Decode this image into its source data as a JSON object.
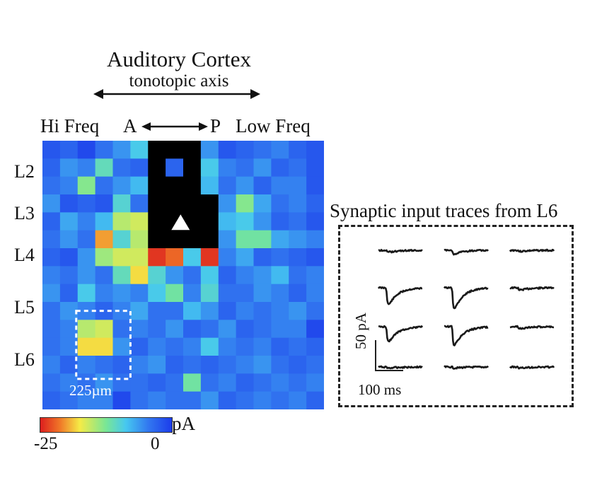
{
  "figure": {
    "title": "Auditory Cortex",
    "subtitle": "tonotopic axis",
    "hi_freq_label": "Hi Freq",
    "a_label": "A",
    "p_label": "P",
    "low_freq_label": "Low Freq",
    "layers": [
      "L2",
      "L3",
      "L4",
      "L5",
      "L6"
    ],
    "scale_label": "225µm",
    "colorbar": {
      "min_label": "-25",
      "max_label": "0",
      "unit": "pA",
      "min": -25,
      "max": 0
    },
    "traces_title": "Synaptic input traces from L6",
    "scale_y_label": "50 pA",
    "scale_x_label": "100 ms",
    "soma_marker": "triangle",
    "colors": {
      "accent_black": "#000000",
      "background_blue": "#1f45e8",
      "dash": "#ffffff"
    }
  },
  "chart_data": {
    "type": "heatmap",
    "unit": "pA",
    "range": [
      -25,
      0
    ],
    "masked_value": "excluded (black)",
    "grid": [
      [
        -2,
        -3,
        -1,
        -4,
        -6,
        -9,
        null,
        null,
        null,
        -6,
        -2,
        -3,
        -4,
        -5,
        -3,
        -2
      ],
      [
        -3,
        -6,
        -5,
        -11,
        -4,
        -3,
        null,
        -3,
        null,
        -9,
        -5,
        -4,
        -6,
        -3,
        -4,
        -2
      ],
      [
        -4,
        -5,
        -13,
        -4,
        -6,
        -8,
        null,
        null,
        null,
        -8,
        -4,
        -6,
        -3,
        -5,
        -5,
        -2
      ],
      [
        -6,
        -2,
        -3,
        -2,
        -10,
        -4,
        null,
        null,
        null,
        null,
        -6,
        -13,
        -7,
        -4,
        -5,
        -3
      ],
      [
        -3,
        -7,
        -5,
        -8,
        -15,
        -16,
        null,
        null,
        null,
        null,
        -8,
        -9,
        -6,
        -3,
        -4,
        -2
      ],
      [
        -4,
        -6,
        -4,
        -20,
        -10,
        -15,
        null,
        null,
        null,
        null,
        -6,
        -12,
        -12,
        -7,
        -6,
        -5
      ],
      [
        -3,
        -2,
        -6,
        -14,
        -16,
        -16,
        -24,
        -22,
        -9,
        -24,
        -5,
        -7,
        -3,
        -4,
        -3,
        -2
      ],
      [
        -5,
        -4,
        -6,
        -4,
        -11,
        -18,
        -10,
        -6,
        -4,
        -9,
        -3,
        -5,
        -6,
        -8,
        -4,
        -5
      ],
      [
        -6,
        -3,
        -9,
        -5,
        -6,
        -5,
        -9,
        -12,
        -5,
        -10,
        -4,
        -4,
        -6,
        -5,
        -3,
        -5
      ],
      [
        -4,
        -6,
        -5,
        -3,
        -5,
        -7,
        -4,
        -4,
        -8,
        -6,
        -3,
        -5,
        -4,
        -5,
        -6,
        -4
      ],
      [
        -4,
        -5,
        -15,
        -16,
        -4,
        -5,
        -4,
        -6,
        -3,
        -4,
        -6,
        -3,
        -4,
        -5,
        -5,
        -1
      ],
      [
        -4,
        -5,
        -18,
        -18,
        -6,
        -3,
        -5,
        -4,
        -5,
        -9,
        -5,
        -4,
        -5,
        -3,
        -4,
        -3
      ],
      [
        -5,
        -3,
        -5,
        -4,
        -3,
        -5,
        -6,
        -3,
        -4,
        -3,
        -4,
        -5,
        -6,
        -4,
        -3,
        -4
      ],
      [
        -4,
        -5,
        -4,
        -6,
        -4,
        -4,
        -3,
        -4,
        -12,
        -4,
        -5,
        -3,
        -4,
        -5,
        -4,
        -5
      ],
      [
        -3,
        -4,
        -5,
        -5,
        -1,
        -4,
        -5,
        -4,
        -4,
        -6,
        -3,
        -4,
        -5,
        -4,
        -5,
        -3
      ]
    ],
    "traces": {
      "rows": 4,
      "cols": 3,
      "peaks_pA": [
        [
          5,
          10,
          3
        ],
        [
          45,
          55,
          6
        ],
        [
          40,
          50,
          5
        ],
        [
          3,
          3,
          3
        ]
      ]
    }
  }
}
